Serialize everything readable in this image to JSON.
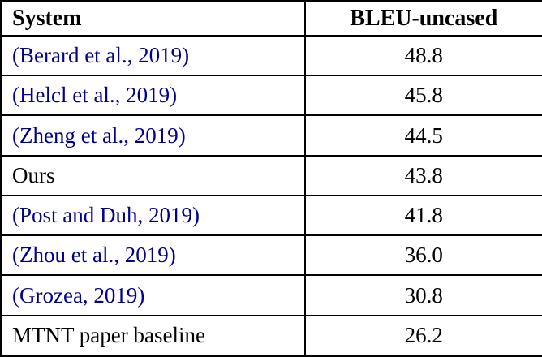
{
  "colors": {
    "citation_link": "#00008B",
    "border": "#000000",
    "background": "#ffffff"
  },
  "table": {
    "headers": [
      "System",
      "BLEU-uncased"
    ],
    "rows": [
      {
        "system": "(Berard et al., 2019)",
        "bleu": "48.8",
        "is_citation": true
      },
      {
        "system": "(Helcl et al., 2019)",
        "bleu": "45.8",
        "is_citation": true
      },
      {
        "system": "(Zheng et al., 2019)",
        "bleu": "44.5",
        "is_citation": true
      },
      {
        "system": "Ours",
        "bleu": "43.8",
        "is_citation": false
      },
      {
        "system": "(Post and Duh, 2019)",
        "bleu": "41.8",
        "is_citation": true
      },
      {
        "system": "(Zhou et al., 2019)",
        "bleu": "36.0",
        "is_citation": true
      },
      {
        "system": "(Grozea, 2019)",
        "bleu": "30.8",
        "is_citation": true
      },
      {
        "system": "MTNT paper baseline",
        "bleu": "26.2",
        "is_citation": false
      }
    ]
  },
  "chart_data": {
    "type": "table",
    "title": "",
    "columns": [
      "System",
      "BLEU-uncased"
    ],
    "categories": [
      "(Berard et al., 2019)",
      "(Helcl et al., 2019)",
      "(Zheng et al., 2019)",
      "Ours",
      "(Post and Duh, 2019)",
      "(Zhou et al., 2019)",
      "(Grozea, 2019)",
      "MTNT paper baseline"
    ],
    "values": [
      48.8,
      45.8,
      44.5,
      43.8,
      41.8,
      36.0,
      30.8,
      26.2
    ]
  }
}
